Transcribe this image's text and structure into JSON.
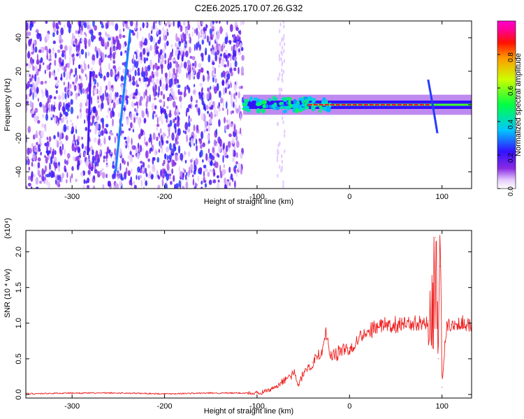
{
  "title": "C2E6.2025.170.07.26.G32",
  "chart_data": [
    {
      "type": "heatmap",
      "xlabel": "Height of straight line (km)",
      "ylabel": "Frequency (Hz)",
      "xlim": [
        -350,
        132
      ],
      "ylim": [
        -50,
        50
      ],
      "x_ticks": [
        -300,
        -200,
        -100,
        0,
        100
      ],
      "x_tick_labels": [
        "-300",
        "-200",
        "-100",
        "0",
        "100"
      ],
      "y_ticks": [
        -40,
        -20,
        0,
        20,
        40
      ],
      "y_tick_labels": [
        "-40",
        "-20",
        "0",
        "20",
        "40"
      ],
      "colorbar": {
        "label": "Normalized spectral amplitude",
        "range": [
          0,
          1
        ],
        "ticks": [
          0.0,
          0.2,
          0.4,
          0.6,
          0.8
        ],
        "tick_labels": [
          "0.0",
          "0.2",
          "0.4",
          "0.6",
          "0.8"
        ],
        "colormap": "rainbow (white → violet → blue → cyan → green → yellow → red → magenta)"
      },
      "features": [
        {
          "name": "diffuse noise",
          "x_range": [
            -350,
            -115
          ],
          "amplitude": 0.1
        },
        {
          "name": "streak",
          "x": [
            -283,
            -280
          ],
          "y": [
            -30,
            20
          ],
          "amplitude": 0.2
        },
        {
          "name": "streak",
          "x": [
            -253,
            -237
          ],
          "y": [
            -40,
            45
          ],
          "amplitude": 0.3
        },
        {
          "name": "tone",
          "x_range": [
            -115,
            132
          ],
          "y": 0,
          "amplitude": 0.9
        },
        {
          "name": "tone excursion",
          "x": [
            85,
            95
          ],
          "y": [
            15,
            -17
          ],
          "amplitude": 0.5
        }
      ]
    },
    {
      "type": "line",
      "xlabel": "Height of straight line (km)",
      "ylabel": "SNR (10 * v/v)",
      "scale_label": "(x10⁴)",
      "xlim": [
        -350,
        132
      ],
      "ylim": [
        -0.05,
        2.3
      ],
      "x_ticks": [
        -300,
        -200,
        -100,
        0,
        100
      ],
      "x_tick_labels": [
        "-300",
        "-200",
        "-100",
        "0",
        "100"
      ],
      "y_ticks": [
        0.0,
        0.5,
        1.0,
        1.5,
        2.0
      ],
      "y_tick_labels": [
        "0.0",
        "0.5",
        "1.0",
        "1.5",
        "2.0"
      ],
      "series": [
        {
          "color": "#ee2222",
          "x": [
            -350,
            -300,
            -250,
            -200,
            -150,
            -110,
            -100,
            -90,
            -80,
            -70,
            -60,
            -55,
            -50,
            -40,
            -30,
            -25,
            -20,
            -10,
            0,
            10,
            20,
            30,
            40,
            50,
            60,
            70,
            80,
            85,
            90,
            93,
            96,
            98,
            100,
            105,
            110,
            120,
            132
          ],
          "y": [
            0.01,
            0.02,
            0.02,
            0.01,
            0.02,
            0.02,
            0.02,
            0.04,
            0.1,
            0.2,
            0.3,
            0.12,
            0.3,
            0.45,
            0.6,
            0.85,
            0.55,
            0.6,
            0.65,
            0.8,
            0.9,
            0.95,
            0.97,
            0.98,
            1.0,
            1.0,
            1.02,
            1.03,
            1.1,
            2.2,
            0.5,
            1.8,
            0.1,
            1.0,
            0.98,
            1.0,
            0.99
          ]
        }
      ]
    }
  ]
}
